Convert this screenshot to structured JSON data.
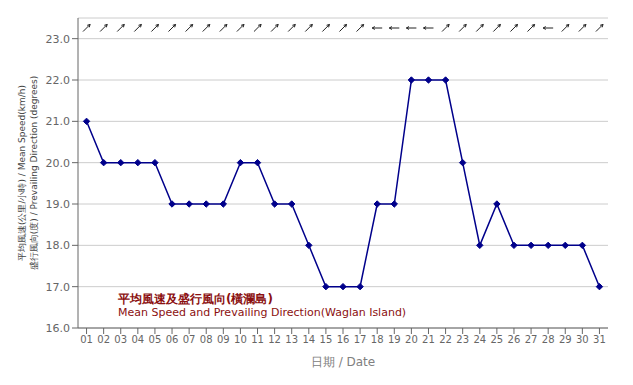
{
  "chart_data": {
    "type": "line",
    "x_label": "日期 / Date",
    "y_label": "平均風速(公里/小時) / Mean Speed(km/h)\n盛行風向(度) / Prevailing Direction (degrees)",
    "annotations": [
      "平均風速及盛行風向(橫瀾島)",
      "Mean Speed and Prevailing Direction(Waglan Island)"
    ],
    "x": [
      1,
      2,
      3,
      4,
      5,
      6,
      7,
      8,
      9,
      10,
      11,
      12,
      13,
      14,
      15,
      16,
      17,
      18,
      19,
      20,
      21,
      22,
      23,
      24,
      25,
      26,
      27,
      28,
      29,
      30,
      31
    ],
    "values": [
      21.0,
      20.0,
      20.0,
      20.0,
      20.0,
      19.0,
      19.0,
      19.0,
      19.0,
      20.0,
      20.0,
      19.0,
      19.0,
      18.0,
      17.0,
      17.0,
      17.0,
      19.0,
      19.0,
      22.0,
      22.0,
      22.0,
      20.0,
      18.0,
      19.0,
      18.0,
      18.0,
      18.0,
      18.0,
      18.0,
      17.0
    ],
    "directions": [
      45,
      45,
      45,
      45,
      45,
      45,
      45,
      45,
      45,
      45,
      45,
      45,
      45,
      45,
      45,
      45,
      45,
      180,
      180,
      180,
      180,
      45,
      45,
      45,
      45,
      45,
      45,
      180,
      45,
      45,
      45
    ],
    "color": "#00008B",
    "marker": "diamond",
    "xlim": [
      0.5,
      31.5
    ],
    "xticks": [
      {
        "value": 1,
        "label": "01"
      },
      {
        "value": 2,
        "label": "02"
      },
      {
        "value": 3,
        "label": "03"
      },
      {
        "value": 4,
        "label": "04"
      },
      {
        "value": 5,
        "label": "05"
      },
      {
        "value": 6,
        "label": "06"
      },
      {
        "value": 7,
        "label": "07"
      },
      {
        "value": 8,
        "label": "08"
      },
      {
        "value": 9,
        "label": "09"
      },
      {
        "value": 10,
        "label": "10"
      },
      {
        "value": 11,
        "label": "11"
      },
      {
        "value": 12,
        "label": "12"
      },
      {
        "value": 13,
        "label": "13"
      },
      {
        "value": 14,
        "label": "14"
      },
      {
        "value": 15,
        "label": "15"
      },
      {
        "value": 16,
        "label": "16"
      },
      {
        "value": 17,
        "label": "17"
      },
      {
        "value": 18,
        "label": "18"
      },
      {
        "value": 19,
        "label": "19"
      },
      {
        "value": 20,
        "label": "20"
      },
      {
        "value": 21,
        "label": "21"
      },
      {
        "value": 22,
        "label": "22"
      },
      {
        "value": 23,
        "label": "23"
      },
      {
        "value": 24,
        "label": "24"
      },
      {
        "value": 25,
        "label": "25"
      },
      {
        "value": 26,
        "label": "26"
      },
      {
        "value": 27,
        "label": "27"
      },
      {
        "value": 28,
        "label": "28"
      },
      {
        "value": 29,
        "label": "29"
      },
      {
        "value": 30,
        "label": "30"
      },
      {
        "value": 31,
        "label": "31"
      }
    ],
    "ylim": [
      16.0,
      23.5
    ],
    "yticks": [
      {
        "value": 16.0,
        "label": "16.0"
      },
      {
        "value": 17.0,
        "label": "17.0"
      },
      {
        "value": 18.0,
        "label": "18.0"
      },
      {
        "value": 19.0,
        "label": "19.0"
      },
      {
        "value": 20.0,
        "label": "20.0"
      },
      {
        "value": 21.0,
        "label": "21.0"
      },
      {
        "value": 22.0,
        "label": "22.0"
      },
      {
        "value": 23.0,
        "label": "23.0"
      }
    ],
    "grid": true
  }
}
